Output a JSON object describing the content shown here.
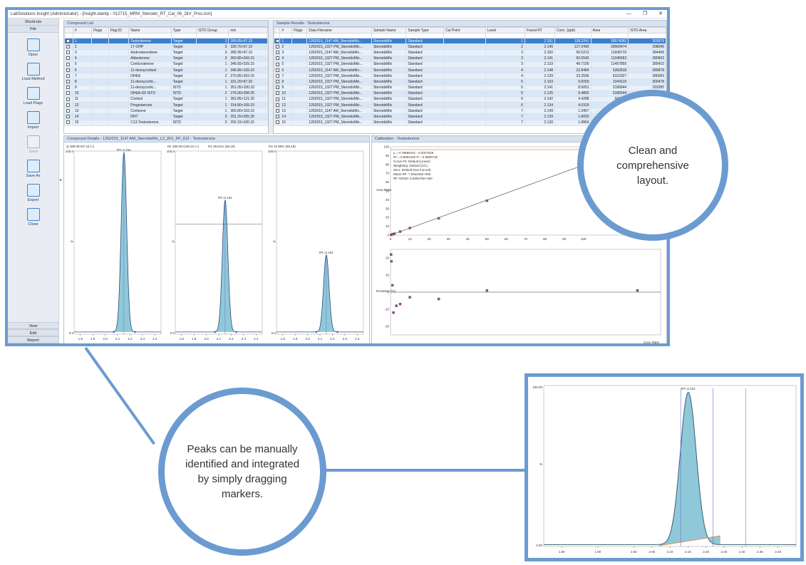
{
  "window": {
    "title": "LabSolutions Insight (Administrator) - [Insight.damtp - 012715_MRM_Steroids_RT_Cal_06_2kV_Proc.lcm]",
    "buttons": [
      "—",
      "❐",
      "✕"
    ]
  },
  "sidebar": {
    "header": "Shortcuts",
    "section": "File",
    "tools": [
      {
        "label": "Open",
        "icon": "folder-open-icon",
        "enabled": true
      },
      {
        "label": "Load Method",
        "icon": "load-method-icon",
        "enabled": true
      },
      {
        "label": "Load Flags",
        "icon": "flag-icon",
        "enabled": true
      },
      {
        "label": "Import",
        "icon": "import-icon",
        "enabled": true
      },
      {
        "label": "Save",
        "icon": "save-icon",
        "enabled": false
      },
      {
        "label": "Save As",
        "icon": "save-as-icon",
        "enabled": true
      },
      {
        "label": "Export",
        "icon": "export-icon",
        "enabled": true
      },
      {
        "label": "Close",
        "icon": "close-document-icon",
        "enabled": true
      }
    ],
    "bottom_sections": [
      "View",
      "Edit",
      "Report"
    ]
  },
  "compound_list": {
    "title": "Compound List",
    "columns": [
      "#",
      "Flags",
      "Flag ID",
      "Name",
      "Type",
      "ISTD Group",
      "m/z"
    ],
    "rows": [
      [
        "1",
        "",
        "",
        "Testosterone",
        "Target",
        "3",
        "289.05>97.15"
      ],
      [
        "2",
        "",
        "",
        "17-OHP",
        "Target",
        "3",
        "330.70>97.10"
      ],
      [
        "3",
        "",
        "",
        "Androstenedione",
        "Target",
        "3",
        "286.95>97.10"
      ],
      [
        "4",
        "",
        "",
        "Aldosterone",
        "Target",
        "3",
        "360.80>343.15"
      ],
      [
        "5",
        "",
        "",
        "Corticosterone",
        "Target",
        "1",
        "346.65>329.15"
      ],
      [
        "6",
        "",
        "",
        "11-deoxycortisol",
        "Target",
        "1",
        "346.85>109.10"
      ],
      [
        "7",
        "",
        "",
        "DHEA",
        "Target",
        "2",
        "270.85>253.15"
      ],
      [
        "8",
        "",
        "",
        "11-deoxycortic...",
        "Target",
        "1",
        "331.20>97.20"
      ],
      [
        "9",
        "",
        "",
        "11-deoxycortic...",
        "ISTD",
        "1",
        "351.05>100.10"
      ],
      [
        "10",
        "",
        "",
        "DHEA-D5 ISTD",
        "ISTD",
        "2",
        "276.00>258.25"
      ],
      [
        "11",
        "",
        "",
        "Cortisol",
        "Target",
        "1",
        "362.85>121.20"
      ],
      [
        "12",
        "",
        "",
        "Progesterone",
        "Target",
        "1",
        "314.80>109.10"
      ],
      [
        "13",
        "",
        "",
        "Cortisone",
        "Target",
        "1",
        "360.80>163.10"
      ],
      [
        "14",
        "",
        "",
        "DHT",
        "Target",
        "3",
        "291.20>255.25"
      ],
      [
        "15",
        "",
        "",
        "C13-Testosterone",
        "ISTD",
        "3",
        "292.15>100.15"
      ]
    ]
  },
  "sample_results": {
    "title": "Sample Results - Testosterone",
    "columns": [
      "#",
      "Flags",
      "Data Filename",
      "Sample Name",
      "Sample Type",
      "Cal Point",
      "Level",
      "Found RT",
      "Conc. (ppb)",
      "Area",
      "ISTD Area"
    ],
    "rows": [
      [
        "1",
        "",
        "1262015_1147 AM_SteroidsMix...",
        "SteroidsMix",
        "Standard",
        "",
        "2",
        "2.151",
        "128.2241",
        "30574282",
        "303078"
      ],
      [
        "2",
        "",
        "1262015_1327 PM_SteroidsMix...",
        "SteroidsMix",
        "Standard",
        "",
        "2",
        "2.140",
        "127.0490",
        "29560474",
        "298045"
      ],
      [
        "3",
        "",
        "1262015_1147 AM_SteroidsMix...",
        "SteroidsMix",
        "Standard",
        "",
        "3",
        "2.150",
        "50.5213",
        "11608710",
        "284408"
      ],
      [
        "4",
        "",
        "1262015_1327 PM_SteroidsMix...",
        "SteroidsMix",
        "Standard",
        "",
        "3",
        "2.141",
        "50.0542",
        "11345562",
        "280502"
      ],
      [
        "5",
        "",
        "1262015_1327 PM_SteroidsMix...",
        "SteroidsMix",
        "Standard",
        "",
        "3",
        "2.133",
        "49.7105",
        "11457856",
        "285410"
      ],
      [
        "6",
        "",
        "1262015_1147 AM_SteroidsMix...",
        "SteroidsMix",
        "Standard",
        "",
        "4",
        "2.148",
        "22.8484",
        "5282818",
        "289878"
      ],
      [
        "7",
        "",
        "1262015_1327 PM_SteroidsMix...",
        "SteroidsMix",
        "Standard",
        "",
        "4",
        "2.139",
        "23.2596",
        "5162027",
        "286083"
      ],
      [
        "8",
        "",
        "1262015_1327 PM_SteroidsMix...",
        "SteroidsMix",
        "Standard",
        "",
        "5",
        "2.153",
        "9.6059",
        "2244115",
        "300478"
      ],
      [
        "9",
        "",
        "1262015_1327 PM_SteroidsMix...",
        "SteroidsMix",
        "Standard",
        "",
        "5",
        "2.141",
        "8.6051",
        "2186844",
        "293385"
      ],
      [
        "10",
        "",
        "1262015_1327 PM_SteroidsMix...",
        "SteroidsMix",
        "Standard",
        "",
        "5",
        "2.135",
        "9.4892",
        "2186544",
        "296380"
      ],
      [
        "11",
        "",
        "1262015_1327 PM_SteroidsMix...",
        "SteroidsMix",
        "Standard",
        "",
        "6",
        "2.142",
        "4.4288",
        "941673",
        "289873"
      ],
      [
        "12",
        "",
        "1262015_1327 PM_SteroidsMix...",
        "SteroidsMix",
        "Standard",
        "",
        "6",
        "2.134",
        "4.0319",
        "938899",
        "293006"
      ],
      [
        "13",
        "",
        "1262015_1147 AM_SteroidsMix...",
        "SteroidsMix",
        "Standard",
        "",
        "7",
        "2.149",
        "1.9457",
        "444799",
        ""
      ],
      [
        "14",
        "",
        "1262015_1327 PM_SteroidsMix...",
        "SteroidsMix",
        "Standard",
        "",
        "7",
        "2.139",
        "1.8050",
        "404695",
        ""
      ],
      [
        "15",
        "",
        "1262015_1327 PM_SteroidsMix...",
        "SteroidsMix",
        "Standard",
        "",
        "7",
        "2.130",
        "1.8864",
        "402140",
        ""
      ]
    ]
  },
  "compound_details": {
    "title": "Compound Details - 1262015_1147 AM_SteroidsMix_L2_2kV_FP_012 - Testosterone",
    "panels": [
      {
        "label": "Q 289.05>97.15 (+)",
        "rt": "RT=2.151",
        "y_top": "100.0",
        "y_bottom": "0.0",
        "ticks": [
          "1.8",
          "1.9",
          "2.0",
          "2.1",
          "2.2",
          "2.3",
          "2.4"
        ]
      },
      {
        "label": "R1 289.05>109.10 (+)",
        "ratio": "R1 36.61% (36.19)",
        "rt": "RT=2.151",
        "y_top": "100.0",
        "y_bottom": "0.0",
        "ticks": [
          "1.8",
          "1.9",
          "2.0",
          "2.1",
          "2.2",
          "2.3",
          "2.4"
        ]
      },
      {
        "label": "R2 22.80% (68.18)",
        "rt": "RT=2.151",
        "y_top": "100.0",
        "y_bottom": "0.0",
        "ticks": [
          "1.8",
          "1.9",
          "2.0",
          "2.1",
          "2.2",
          "2.3",
          "2.4"
        ]
      }
    ]
  },
  "calibration": {
    "title": "Calibration - Testosterone",
    "info": [
      "y = 0.7968910x - 0.0027628",
      "R² = 0.9981440    R = 0.9990718",
      "Curve Fit: Default (Linear)",
      "Weighting: Default (1/C)",
      "Zero: Default (Not Forced)",
      "Mean RF: 7.062225e+000",
      "RF %RSD: 5.605479e+000"
    ],
    "x_ticks": [
      "0",
      "10",
      "20",
      "30",
      "40",
      "50",
      "60",
      "70",
      "80",
      "90",
      "100"
    ],
    "y_ticks": [
      "0",
      "10",
      "20",
      "30",
      "40",
      "50",
      "60",
      "70",
      "80",
      "90",
      "100"
    ],
    "resid_ticks": [
      "-20",
      "-10",
      "0",
      "10",
      "20"
    ],
    "y_axis_label": "Area Ratio",
    "resid_axis_label": "Deviation (%)",
    "x_axis_label": "Conc Ratio"
  },
  "callouts": {
    "layout": "Clean and comprehensive layout.",
    "peaks": "Peaks can be manually identified and integrated by simply dragging markers."
  },
  "zoom": {
    "rt": "RT=2.151",
    "y_top": "100.00",
    "y_bottom": "0.00",
    "ticks": [
      "1.80",
      "1.90",
      "2.00",
      "2.05",
      "2.10",
      "2.15",
      "2.20",
      "2.25",
      "2.30",
      "2.35",
      "2.40"
    ]
  }
}
